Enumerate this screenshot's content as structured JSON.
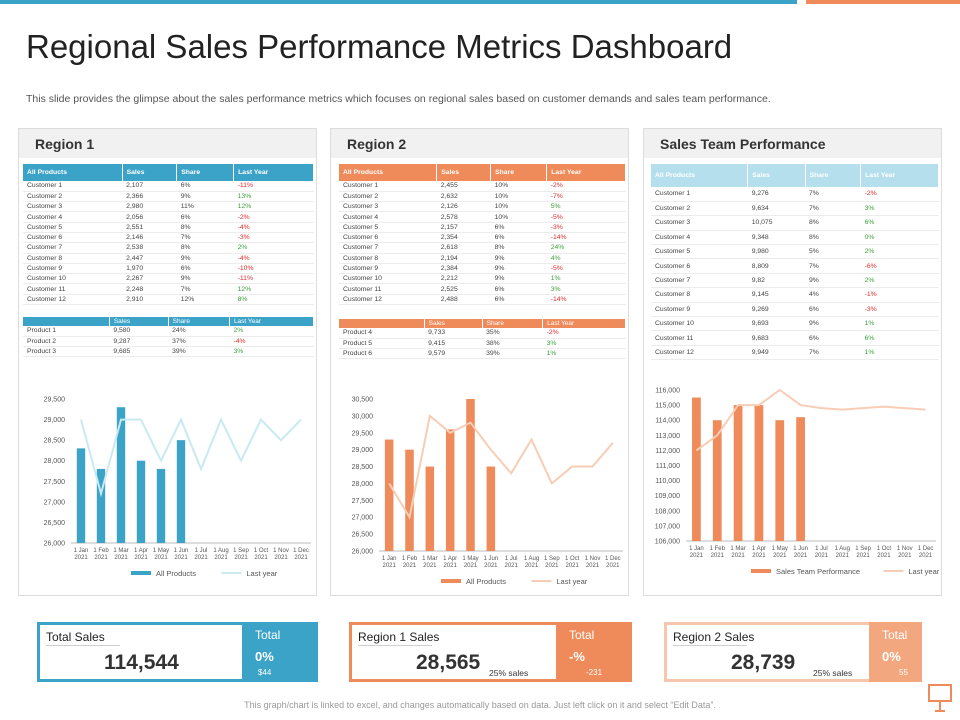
{
  "title": "Regional Sales Performance Metrics Dashboard",
  "subtitle": "This slide provides the glimpse about the sales performance metrics which focuses on regional sales based on customer demands and sales team performance.",
  "colors": {
    "blue": "#3ca3c8",
    "orange": "#ef8a5a",
    "light_blue": "#b6dfee",
    "light_orange": "#f6c7ac",
    "green": "#3a9f3a",
    "red": "#e02b2b"
  },
  "panels": {
    "region1": {
      "title": "Region 1",
      "headers": [
        "All Products",
        "Sales",
        "Share",
        "Last Year"
      ],
      "customers": [
        [
          "Customer 1",
          "2,107",
          "6%",
          "-11%"
        ],
        [
          "Customer 2",
          "2,366",
          "9%",
          "13%"
        ],
        [
          "Customer 3",
          "2,980",
          "11%",
          "12%"
        ],
        [
          "Customer 4",
          "2,056",
          "6%",
          "-2%"
        ],
        [
          "Customer 5",
          "2,551",
          "8%",
          "-4%"
        ],
        [
          "Customer 6",
          "2,146",
          "7%",
          "-3%"
        ],
        [
          "Customer 7",
          "2,538",
          "8%",
          "2%"
        ],
        [
          "Customer 8",
          "2,447",
          "9%",
          "-4%"
        ],
        [
          "Customer 9",
          "1,970",
          "6%",
          "-10%"
        ],
        [
          "Customer 10",
          "2,267",
          "9%",
          "-11%"
        ],
        [
          "Customer 11",
          "2,248",
          "7%",
          "12%"
        ],
        [
          "Customer 12",
          "2,910",
          "12%",
          "8%"
        ]
      ],
      "sub_headers": [
        "",
        "Sales",
        "Share",
        "Last Year"
      ],
      "products": [
        [
          "Product 1",
          "9,580",
          "24%",
          "2%"
        ],
        [
          "Product 2",
          "9,287",
          "37%",
          "-4%"
        ],
        [
          "Product 3",
          "9,685",
          "39%",
          "3%"
        ]
      ]
    },
    "region2": {
      "title": "Region 2",
      "headers": [
        "All Products",
        "Sales",
        "Share",
        "Last Year"
      ],
      "customers": [
        [
          "Customer 1",
          "2,455",
          "10%",
          "-2%"
        ],
        [
          "Customer 2",
          "2,632",
          "10%",
          "-7%"
        ],
        [
          "Customer 3",
          "2,126",
          "10%",
          "5%"
        ],
        [
          "Customer 4",
          "2,578",
          "10%",
          "-5%"
        ],
        [
          "Customer 5",
          "2,157",
          "6%",
          "-3%"
        ],
        [
          "Customer 6",
          "2,354",
          "6%",
          "-14%"
        ],
        [
          "Customer 7",
          "2,618",
          "8%",
          "24%"
        ],
        [
          "Customer 8",
          "2,194",
          "9%",
          "4%"
        ],
        [
          "Customer 9",
          "2,384",
          "9%",
          "-5%"
        ],
        [
          "Customer 10",
          "2,212",
          "9%",
          "1%"
        ],
        [
          "Customer 11",
          "2,525",
          "6%",
          "3%"
        ],
        [
          "Customer 12",
          "2,488",
          "6%",
          "-14%"
        ]
      ],
      "sub_headers": [
        "",
        "Sales",
        "Share",
        "Last Year"
      ],
      "products": [
        [
          "Product 4",
          "9,733",
          "35%",
          "-2%"
        ],
        [
          "Product 5",
          "9,415",
          "38%",
          "3%"
        ],
        [
          "Product 6",
          "9,579",
          "39%",
          "1%"
        ]
      ]
    },
    "team": {
      "title": "Sales Team Performance",
      "headers": [
        "All Products",
        "Sales",
        "Share",
        "Last Year"
      ],
      "customers": [
        [
          "Customer 1",
          "9,276",
          "7%",
          "-2%"
        ],
        [
          "Customer 2",
          "9,634",
          "7%",
          "3%"
        ],
        [
          "Customer 3",
          "10,075",
          "8%",
          "6%"
        ],
        [
          "Customer 4",
          "9,348",
          "8%",
          "0%"
        ],
        [
          "Customer 5",
          "9,980",
          "5%",
          "2%"
        ],
        [
          "Customer 6",
          "8,809",
          "7%",
          "-6%"
        ],
        [
          "Customer 7",
          "9,82",
          "9%",
          "2%"
        ],
        [
          "Customer 8",
          "9,145",
          "4%",
          "-1%"
        ],
        [
          "Customer 9",
          "9,269",
          "6%",
          "-3%"
        ],
        [
          "Customer 10",
          "9,693",
          "9%",
          "1%"
        ],
        [
          "Customer 11",
          "9,683",
          "6%",
          "6%"
        ],
        [
          "Customer 12",
          "9,949",
          "7%",
          "1%"
        ]
      ]
    }
  },
  "chart_data": [
    {
      "type": "bar",
      "name": "region1-chart",
      "categories": [
        "1 Jan 2021",
        "1 Feb 2021",
        "1 Mar 2021",
        "1 Apr 2021",
        "1 May 2021",
        "1 Jun 2021",
        "1 Jul 2021",
        "1 Aug 2021",
        "1 Sep 2021",
        "1 Oct 2021",
        "1 Nov 2021",
        "1 Dec 2021"
      ],
      "ylim": [
        26000,
        29500
      ],
      "yticks": [
        "26,000",
        "26,500",
        "27,000",
        "27,500",
        "28,000",
        "28,500",
        "29,000",
        "29,500"
      ],
      "series": [
        {
          "name": "All Products",
          "kind": "bar",
          "values": [
            28300,
            27800,
            29300,
            28000,
            27800,
            28500,
            null,
            null,
            null,
            null,
            null,
            null
          ]
        },
        {
          "name": "Last year",
          "kind": "line",
          "values": [
            29000,
            27200,
            29000,
            29000,
            28000,
            29000,
            27800,
            29000,
            28000,
            29000,
            28500,
            29000
          ]
        }
      ]
    },
    {
      "type": "bar",
      "name": "region2-chart",
      "categories": [
        "1 Jan 2021",
        "1 Feb 2021",
        "1 Mar 2021",
        "1 Apr 2021",
        "1 May 2021",
        "1 Jun 2021",
        "1 Jul 2021",
        "1 Aug 2021",
        "1 Sep 2021",
        "1 Oct 2021",
        "1 Nov 2021",
        "1 Dec 2021"
      ],
      "ylim": [
        26000,
        30500
      ],
      "yticks": [
        "26,000",
        "26,500",
        "27,000",
        "27,500",
        "28,000",
        "28,500",
        "29,000",
        "29,500",
        "30,000",
        "30,500"
      ],
      "series": [
        {
          "name": "All Products",
          "kind": "bar",
          "values": [
            29300,
            29000,
            28500,
            29600,
            30500,
            28500,
            null,
            null,
            null,
            null,
            null,
            null
          ]
        },
        {
          "name": "Last year",
          "kind": "line",
          "values": [
            28000,
            27000,
            30000,
            29500,
            29800,
            29000,
            28300,
            29300,
            28000,
            28500,
            28500,
            29200
          ]
        }
      ]
    },
    {
      "type": "bar",
      "name": "team-chart",
      "categories": [
        "1 Jan 2021",
        "1 Feb 2021",
        "1 Mar 2021",
        "1 Apr 2021",
        "1 May 2021",
        "1 Jun 2021",
        "1 Jul 2021",
        "1 Aug 2021",
        "1 Sep 2021",
        "1 Oct 2021",
        "1 Nov 2021",
        "1 Dec 2021"
      ],
      "ylim": [
        106000,
        116000
      ],
      "yticks": [
        "106,000",
        "107,000",
        "108,000",
        "109,000",
        "110,000",
        "111,000",
        "112,000",
        "113,000",
        "114,000",
        "115,000",
        "116,000"
      ],
      "series": [
        {
          "name": "Sales Team Performance",
          "kind": "bar",
          "values": [
            115500,
            114000,
            115000,
            115000,
            114000,
            114200,
            null,
            null,
            null,
            null,
            null,
            null
          ]
        },
        {
          "name": "Last year",
          "kind": "line",
          "values": [
            112000,
            113000,
            115000,
            115000,
            116000,
            115000,
            114800,
            114700,
            114800,
            114900,
            114800,
            114700
          ]
        }
      ]
    }
  ],
  "kpis": [
    {
      "label": "Total Sales",
      "value": "114,544",
      "pct": "",
      "side_title": "Total",
      "side_value": "0%",
      "side_sub": "$44"
    },
    {
      "label": "Region 1 Sales",
      "value": "28,565",
      "pct": "25% sales",
      "side_title": "Total",
      "side_value": "-%",
      "side_sub": "-231"
    },
    {
      "label": "Region 2 Sales",
      "value": "28,739",
      "pct": "25% sales",
      "side_title": "Total",
      "side_value": "0%",
      "side_sub": "55"
    }
  ],
  "footer": "This graph/chart is linked to excel, and changes automatically based on data. Just left click on it and select “Edit Data”."
}
